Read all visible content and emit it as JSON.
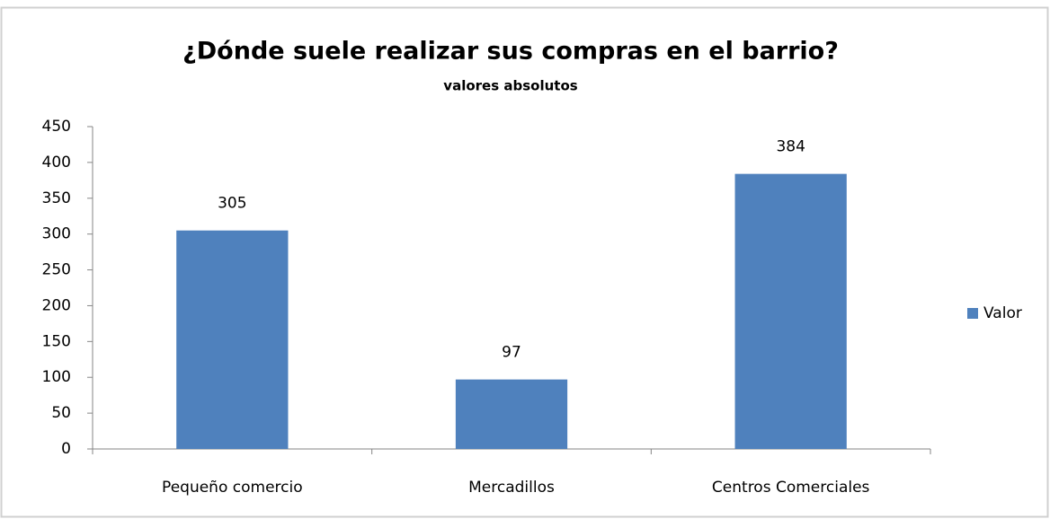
{
  "chart_data": {
    "type": "bar",
    "title": "¿Dónde suele realizar sus compras en el barrio?",
    "subtitle": "valores absolutos",
    "categories": [
      "Pequeño comercio",
      "Mercadillos",
      "Centros Comerciales"
    ],
    "series": [
      {
        "name": "Valor",
        "color": "#4f81bd",
        "values": [
          305,
          97,
          384
        ]
      }
    ],
    "ylim": [
      0,
      450
    ],
    "yticks": [
      0,
      50,
      100,
      150,
      200,
      250,
      300,
      350,
      400,
      450
    ],
    "grid": false,
    "legend": "right",
    "data_labels": true
  }
}
